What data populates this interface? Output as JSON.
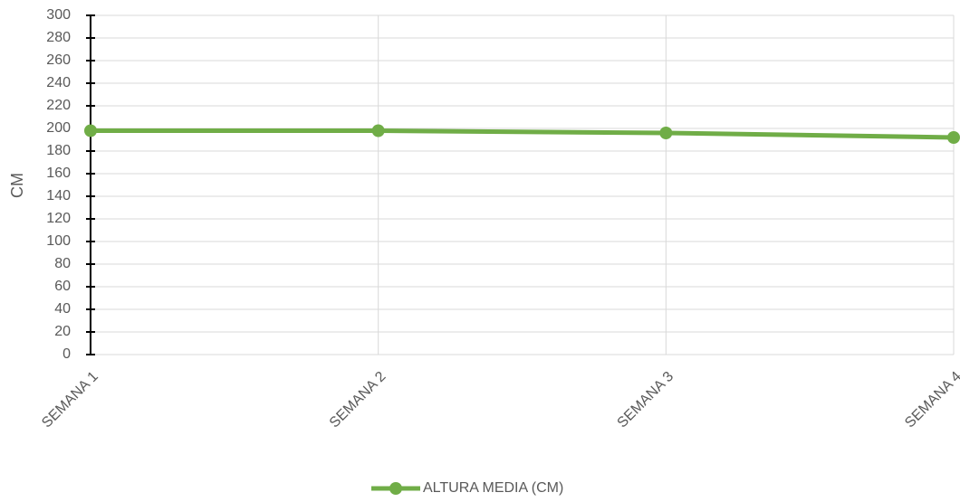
{
  "chart_data": {
    "type": "line",
    "categories": [
      "SEMANA 1",
      "SEMANA 2",
      "SEMANA 3",
      "SEMANA 4"
    ],
    "series": [
      {
        "name": "ALTURA MEDIA (CM)",
        "color": "#70ad47",
        "values": [
          198,
          198,
          196,
          192
        ]
      }
    ],
    "y_label": "CM",
    "ylim": [
      0,
      300
    ],
    "yticks": [
      0,
      20,
      40,
      60,
      80,
      100,
      120,
      140,
      160,
      180,
      200,
      220,
      240,
      260,
      280,
      300
    ],
    "grid": true,
    "legend": "bottom"
  }
}
